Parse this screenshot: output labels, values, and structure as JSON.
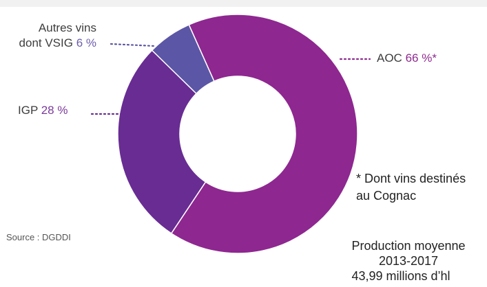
{
  "chart_data": {
    "type": "pie",
    "donut": true,
    "categories": [
      "AOC",
      "IGP",
      "Autres vins dont VSIG"
    ],
    "values": [
      66,
      28,
      6
    ],
    "labels": [
      {
        "text": "AOC",
        "value_text": "66 %*"
      },
      {
        "text": "IGP",
        "value_text": "28 %"
      },
      {
        "text_line1": "Autres vins",
        "text_line2": "dont VSIG",
        "value_text": "6 %"
      }
    ],
    "colors": [
      "#8e2790",
      "#682c93",
      "#5b56a5"
    ],
    "legend_position": "none"
  },
  "footnote": {
    "line1": "* Dont vins destinés",
    "line2": "au Cognac"
  },
  "source": "Source : DGDDI",
  "production": {
    "line1": "Production moyenne",
    "line2": "2013-2017",
    "line3": "43,99 millions d’hl"
  }
}
